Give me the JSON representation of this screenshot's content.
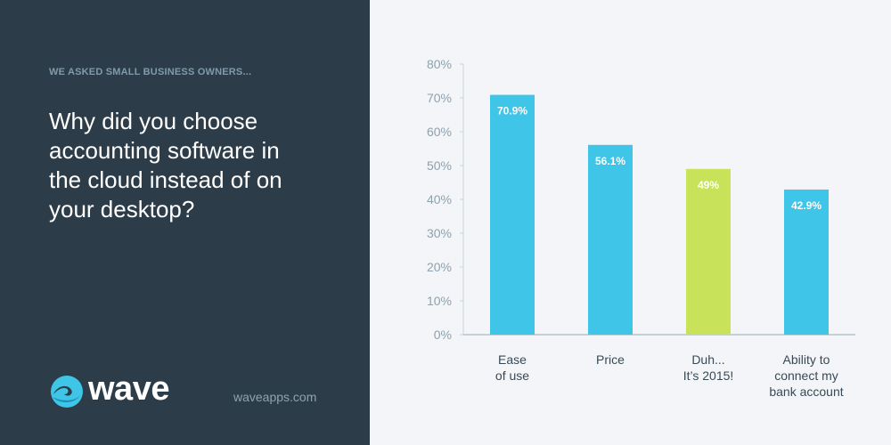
{
  "kicker": "WE ASKED SMALL BUSINESS OWNERS...",
  "question": "Why did you choose\naccounting software in\nthe cloud instead of on\nyour desktop?",
  "logo": "wave",
  "website": "waveapps.com",
  "chart_data": {
    "type": "bar",
    "categories": [
      "Ease\nof use",
      "Price",
      "Duh...\nIt’s 2015!",
      "Ability to\nconnect my\nbank account"
    ],
    "values": [
      70.9,
      56.1,
      49,
      42.9
    ],
    "value_labels": [
      "70.9%",
      "56.1%",
      "49%",
      "42.9%"
    ],
    "colors": [
      "#3ec5e7",
      "#3ec5e7",
      "#c8e35a",
      "#3ec5e7"
    ],
    "ylim": [
      0,
      80
    ],
    "yticks": [
      {
        "value": 0,
        "label": "0%"
      },
      {
        "value": 10,
        "label": "10%"
      },
      {
        "value": 20,
        "label": "20%"
      },
      {
        "value": 30,
        "label": "30%"
      },
      {
        "value": 40,
        "label": "40%"
      },
      {
        "value": 50,
        "label": "50%"
      },
      {
        "value": 60,
        "label": "60%"
      },
      {
        "value": 70,
        "label": "70%"
      },
      {
        "value": 80,
        "label": "80%"
      }
    ],
    "grid": false
  }
}
